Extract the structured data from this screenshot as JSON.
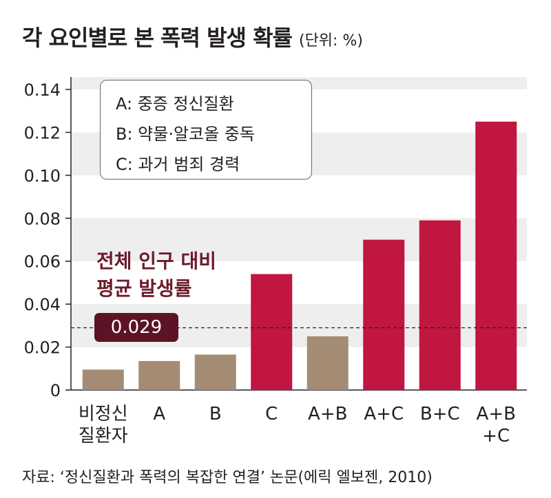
{
  "title": "각 요인별로 본 폭력 발생 확률",
  "unit": "(단위: %)",
  "source": "자료: ‘정신질환과 폭력의 복잡한 연결’ 논문(에릭 엘보젠, 2010)",
  "legend": [
    "A: 중증 정신질환",
    "B: 약물·알코올 중독",
    "C: 과거 범죄 경력"
  ],
  "average_label_line1": "전체 인구 대비",
  "average_label_line2": "평균 발생률",
  "average_value_label": "0.029",
  "colors": {
    "low": "#a38c73",
    "high": "#c0163f",
    "badge": "#5c1326",
    "grid": "#eeeeee"
  },
  "chart_data": {
    "type": "bar",
    "categories": [
      "비정신\n질환자",
      "A",
      "B",
      "C",
      "A+B",
      "A+C",
      "B+C",
      "A+B\n+C"
    ],
    "values": [
      0.0095,
      0.0135,
      0.0165,
      0.054,
      0.025,
      0.07,
      0.079,
      0.125
    ],
    "bar_colors": [
      "low",
      "low",
      "low",
      "high",
      "low",
      "high",
      "high",
      "high"
    ],
    "yticks": [
      "0",
      "0.02",
      "0.04",
      "0.06",
      "0.08",
      "0.10",
      "0.12",
      "0.14"
    ],
    "ylim": [
      0,
      0.14
    ],
    "reference_line": 0.029,
    "grid": "horizontal bands"
  }
}
